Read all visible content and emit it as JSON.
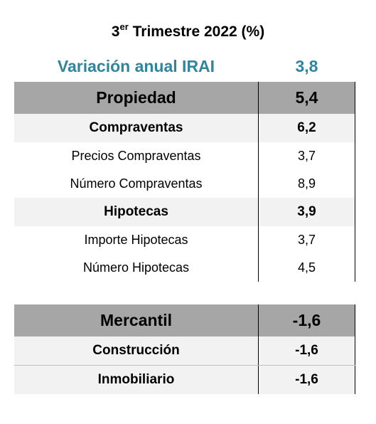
{
  "title": {
    "prefix": "3",
    "sup": "er",
    "rest": " Trimestre 2022 (%)"
  },
  "irai": {
    "label": "Variación anual IRAI",
    "value": "3,8"
  },
  "propiedad": {
    "header": {
      "label": "Propiedad",
      "value": "5,4"
    },
    "rows": [
      {
        "label": "Compraventas",
        "value": "6,2"
      },
      {
        "label": "Precios Compraventas",
        "value": "3,7"
      },
      {
        "label": "Número Compraventas",
        "value": "8,9"
      },
      {
        "label": "Hipotecas",
        "value": "3,9"
      },
      {
        "label": "Importe Hipotecas",
        "value": "3,7"
      },
      {
        "label": "Número Hipotecas",
        "value": "4,5"
      }
    ]
  },
  "mercantil": {
    "header": {
      "label": "Mercantil",
      "value": "-1,6"
    },
    "rows": [
      {
        "label": "Construcción",
        "value": "-1,6"
      },
      {
        "label": "Inmobiliario",
        "value": "-1,6"
      }
    ]
  },
  "colors": {
    "accent": "#31849b",
    "header_bg": "#a6a6a6",
    "sub_bg": "#f2f2f2"
  }
}
